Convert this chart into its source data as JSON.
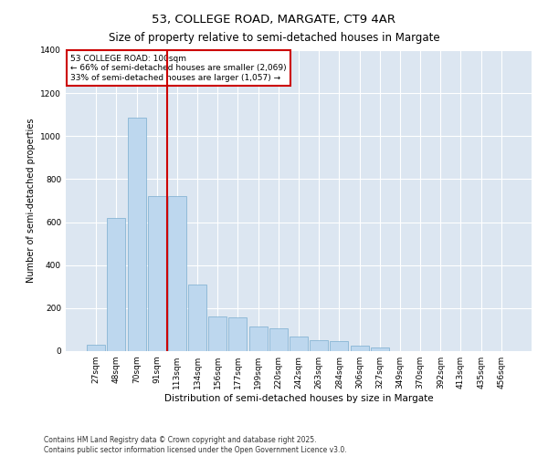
{
  "title": "53, COLLEGE ROAD, MARGATE, CT9 4AR",
  "subtitle": "Size of property relative to semi-detached houses in Margate",
  "xlabel": "Distribution of semi-detached houses by size in Margate",
  "ylabel": "Number of semi-detached properties",
  "categories": [
    "27sqm",
    "48sqm",
    "70sqm",
    "91sqm",
    "113sqm",
    "134sqm",
    "156sqm",
    "177sqm",
    "199sqm",
    "220sqm",
    "242sqm",
    "263sqm",
    "284sqm",
    "306sqm",
    "327sqm",
    "349sqm",
    "370sqm",
    "392sqm",
    "413sqm",
    "435sqm",
    "456sqm"
  ],
  "values": [
    30,
    620,
    1085,
    720,
    720,
    310,
    160,
    155,
    115,
    105,
    70,
    50,
    45,
    25,
    15,
    0,
    0,
    0,
    0,
    0,
    0
  ],
  "bar_color": "#bdd7ee",
  "bar_edge_color": "#7aadcf",
  "red_line_x": 3.5,
  "property_label": "53 COLLEGE ROAD: 100sqm",
  "smaller_text": "← 66% of semi-detached houses are smaller (2,069)",
  "larger_text": "33% of semi-detached houses are larger (1,057) →",
  "annotation_box_facecolor": "#ffffff",
  "annotation_box_edgecolor": "#cc0000",
  "red_line_color": "#cc0000",
  "ylim": [
    0,
    1400
  ],
  "yticks": [
    0,
    200,
    400,
    600,
    800,
    1000,
    1200,
    1400
  ],
  "grid_color": "#ffffff",
  "background_color": "#dce6f1",
  "footer_line1": "Contains HM Land Registry data © Crown copyright and database right 2025.",
  "footer_line2": "Contains public sector information licensed under the Open Government Licence v3.0.",
  "title_fontsize": 9.5,
  "subtitle_fontsize": 8.5,
  "xlabel_fontsize": 7.5,
  "ylabel_fontsize": 7,
  "tick_fontsize": 6.5,
  "annotation_fontsize": 6.5,
  "footer_fontsize": 5.5
}
